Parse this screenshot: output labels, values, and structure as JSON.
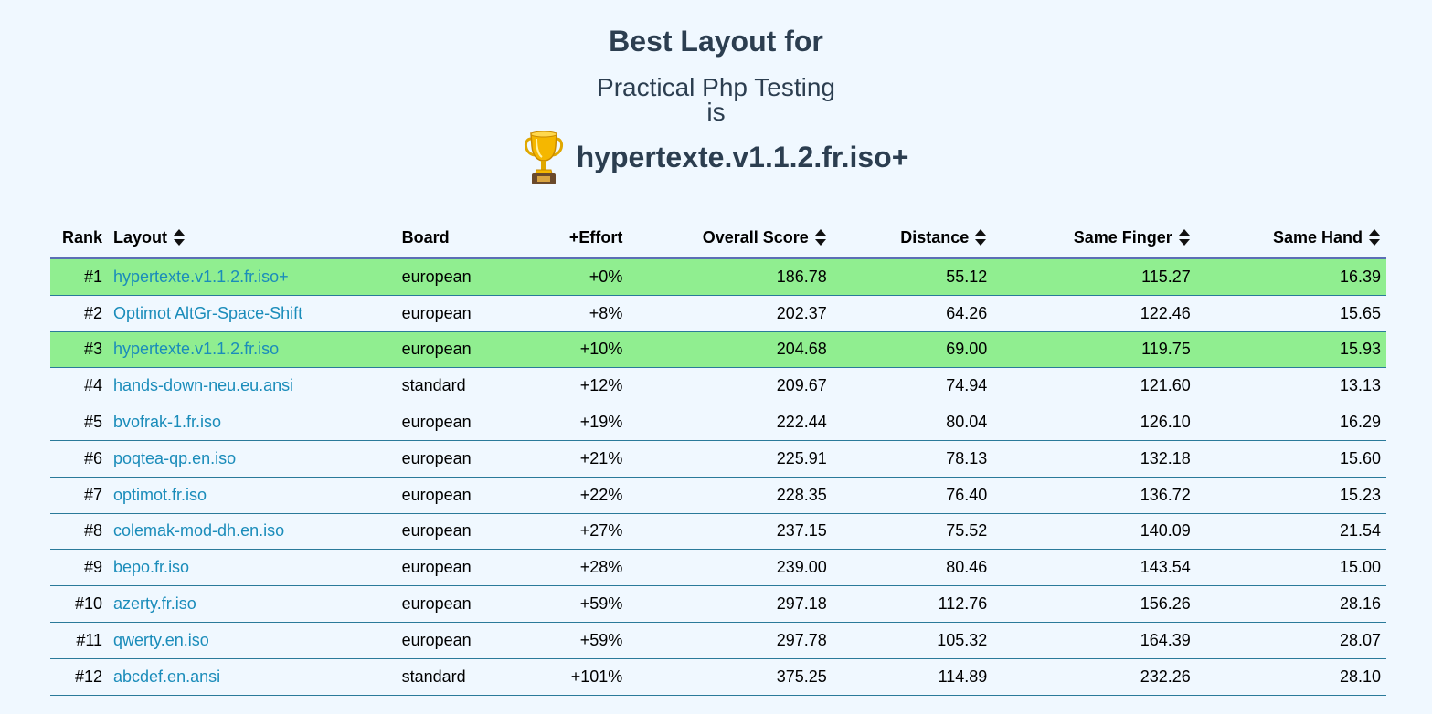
{
  "header": {
    "title": "Best Layout for",
    "subject": "Practical Php Testing",
    "connector": "is",
    "winner": "hypertexte.v1.1.2.fr.iso+",
    "winner_icon": "trophy-icon"
  },
  "table": {
    "columns": {
      "rank": "Rank",
      "layout": "Layout",
      "board": "Board",
      "effort": "+Effort",
      "overall": "Overall Score",
      "distance": "Distance",
      "same_finger": "Same Finger",
      "same_hand": "Same Hand"
    },
    "highlight_color": "#90ee90",
    "link_color": "#1a8cba",
    "rows": [
      {
        "rank": "#1",
        "layout": "hypertexte.v1.1.2.fr.iso+",
        "board": "european",
        "effort": "+0%",
        "overall": "186.78",
        "distance": "55.12",
        "same_finger": "115.27",
        "same_hand": "16.39",
        "highlight": true
      },
      {
        "rank": "#2",
        "layout": "Optimot AltGr-Space-Shift",
        "board": "european",
        "effort": "+8%",
        "overall": "202.37",
        "distance": "64.26",
        "same_finger": "122.46",
        "same_hand": "15.65",
        "highlight": false
      },
      {
        "rank": "#3",
        "layout": "hypertexte.v1.1.2.fr.iso",
        "board": "european",
        "effort": "+10%",
        "overall": "204.68",
        "distance": "69.00",
        "same_finger": "119.75",
        "same_hand": "15.93",
        "highlight": true
      },
      {
        "rank": "#4",
        "layout": "hands-down-neu.eu.ansi",
        "board": "standard",
        "effort": "+12%",
        "overall": "209.67",
        "distance": "74.94",
        "same_finger": "121.60",
        "same_hand": "13.13",
        "highlight": false
      },
      {
        "rank": "#5",
        "layout": "bvofrak-1.fr.iso",
        "board": "european",
        "effort": "+19%",
        "overall": "222.44",
        "distance": "80.04",
        "same_finger": "126.10",
        "same_hand": "16.29",
        "highlight": false
      },
      {
        "rank": "#6",
        "layout": "poqtea-qp.en.iso",
        "board": "european",
        "effort": "+21%",
        "overall": "225.91",
        "distance": "78.13",
        "same_finger": "132.18",
        "same_hand": "15.60",
        "highlight": false
      },
      {
        "rank": "#7",
        "layout": "optimot.fr.iso",
        "board": "european",
        "effort": "+22%",
        "overall": "228.35",
        "distance": "76.40",
        "same_finger": "136.72",
        "same_hand": "15.23",
        "highlight": false
      },
      {
        "rank": "#8",
        "layout": "colemak-mod-dh.en.iso",
        "board": "european",
        "effort": "+27%",
        "overall": "237.15",
        "distance": "75.52",
        "same_finger": "140.09",
        "same_hand": "21.54",
        "highlight": false
      },
      {
        "rank": "#9",
        "layout": "bepo.fr.iso",
        "board": "european",
        "effort": "+28%",
        "overall": "239.00",
        "distance": "80.46",
        "same_finger": "143.54",
        "same_hand": "15.00",
        "highlight": false
      },
      {
        "rank": "#10",
        "layout": "azerty.fr.iso",
        "board": "european",
        "effort": "+59%",
        "overall": "297.18",
        "distance": "112.76",
        "same_finger": "156.26",
        "same_hand": "28.16",
        "highlight": false
      },
      {
        "rank": "#11",
        "layout": "qwerty.en.iso",
        "board": "european",
        "effort": "+59%",
        "overall": "297.78",
        "distance": "105.32",
        "same_finger": "164.39",
        "same_hand": "28.07",
        "highlight": false
      },
      {
        "rank": "#12",
        "layout": "abcdef.en.ansi",
        "board": "standard",
        "effort": "+101%",
        "overall": "375.25",
        "distance": "114.89",
        "same_finger": "232.26",
        "same_hand": "28.10",
        "highlight": false
      }
    ]
  }
}
